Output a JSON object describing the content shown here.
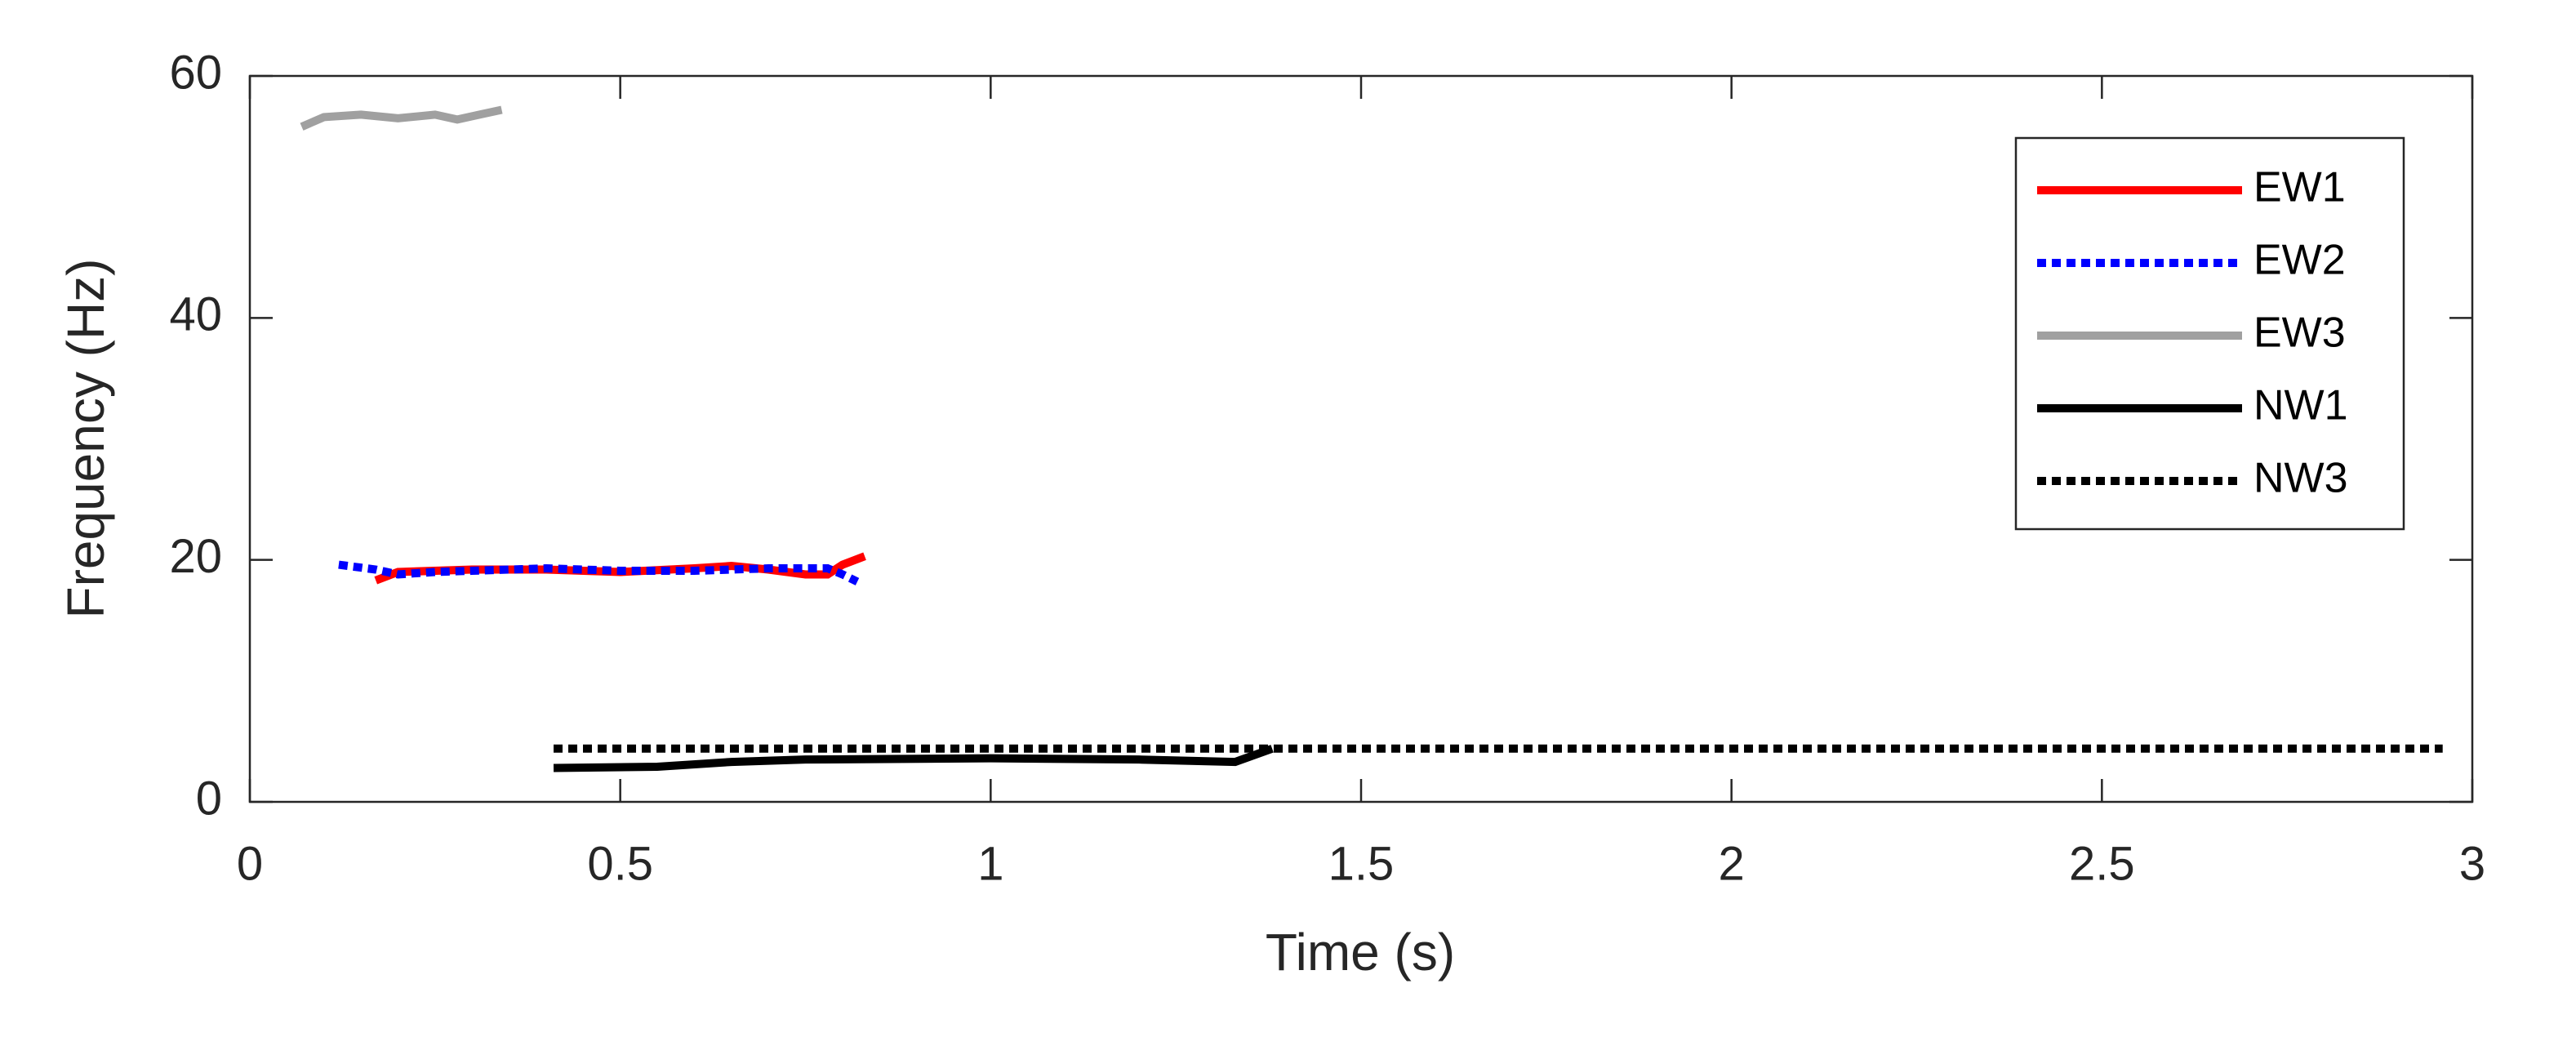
{
  "chart_data": {
    "type": "line",
    "xlabel": "Time (s)",
    "ylabel": "Frequency (Hz)",
    "xlim": [
      0,
      3
    ],
    "xticks": [
      0,
      0.5,
      1,
      1.5,
      2,
      2.5,
      3
    ],
    "ylim": [
      0,
      60
    ],
    "yticks": [
      0,
      20,
      40,
      60
    ],
    "legend": "top-right",
    "grid": false,
    "series": [
      {
        "name": "EW1",
        "color": "#ff0000",
        "dash": "solid",
        "x": [
          0.17,
          0.2,
          0.3,
          0.4,
          0.5,
          0.6,
          0.65,
          0.7,
          0.75,
          0.78,
          0.8,
          0.83
        ],
        "values": [
          18.3,
          19.0,
          19.2,
          19.2,
          19.0,
          19.3,
          19.5,
          19.2,
          18.8,
          18.8,
          19.6,
          20.3
        ]
      },
      {
        "name": "EW2",
        "color": "#0000ff",
        "dash": "dotted",
        "x": [
          0.12,
          0.17,
          0.2,
          0.25,
          0.3,
          0.4,
          0.5,
          0.6,
          0.7,
          0.78,
          0.8,
          0.82
        ],
        "values": [
          19.6,
          19.2,
          18.8,
          19.0,
          19.1,
          19.3,
          19.1,
          19.1,
          19.3,
          19.3,
          18.8,
          18.2
        ]
      },
      {
        "name": "EW3",
        "color": "#a0a0a0",
        "dash": "solid",
        "x": [
          0.07,
          0.1,
          0.15,
          0.2,
          0.25,
          0.28,
          0.31,
          0.34
        ],
        "values": [
          55.8,
          56.6,
          56.8,
          56.5,
          56.8,
          56.4,
          56.8,
          57.2
        ]
      },
      {
        "name": "NW1",
        "color": "#000000",
        "dash": "solid",
        "x": [
          0.41,
          0.55,
          0.65,
          0.75,
          1.0,
          1.2,
          1.33,
          1.38
        ],
        "values": [
          2.8,
          2.9,
          3.3,
          3.5,
          3.6,
          3.5,
          3.3,
          4.4
        ]
      },
      {
        "name": "NW3",
        "color": "#000000",
        "dash": "dotted",
        "x": [
          0.41,
          2.96
        ],
        "values": [
          4.4,
          4.4
        ]
      }
    ]
  }
}
